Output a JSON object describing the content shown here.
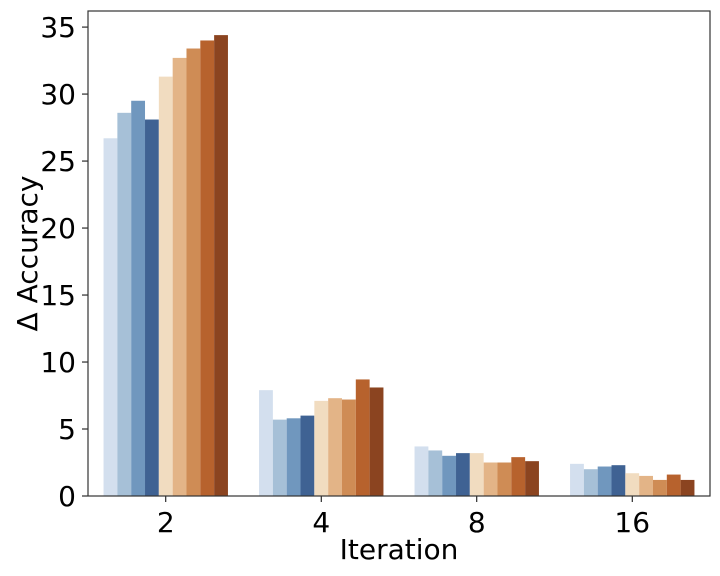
{
  "chart_data": {
    "type": "bar",
    "xlabel": "Iteration",
    "ylabel": "Δ Accuracy",
    "categories": [
      "2",
      "4",
      "8",
      "16"
    ],
    "ylim": [
      0,
      36.2
    ],
    "yticks": [
      "0",
      "5",
      "10",
      "15",
      "20",
      "25",
      "30",
      "35"
    ],
    "grid": false,
    "legend": "none",
    "series": [
      {
        "color": "#d3dfee",
        "values": [
          26.7,
          7.9,
          3.7,
          2.4
        ]
      },
      {
        "color": "#a6c0d7",
        "values": [
          28.6,
          5.7,
          3.4,
          2.0
        ]
      },
      {
        "color": "#7097be",
        "values": [
          29.5,
          5.8,
          3.0,
          2.2
        ]
      },
      {
        "color": "#3f6293",
        "values": [
          28.1,
          6.0,
          3.2,
          2.3
        ]
      },
      {
        "color": "#f1dcc0",
        "values": [
          31.3,
          7.1,
          3.2,
          1.7
        ]
      },
      {
        "color": "#e3b487",
        "values": [
          32.7,
          7.3,
          2.5,
          1.5
        ]
      },
      {
        "color": "#cf8c55",
        "values": [
          33.4,
          7.2,
          2.5,
          1.2
        ]
      },
      {
        "color": "#b7622d",
        "values": [
          34.0,
          8.7,
          2.9,
          1.6
        ]
      },
      {
        "color": "#8b4420",
        "values": [
          34.4,
          8.1,
          2.6,
          1.2
        ]
      }
    ]
  }
}
